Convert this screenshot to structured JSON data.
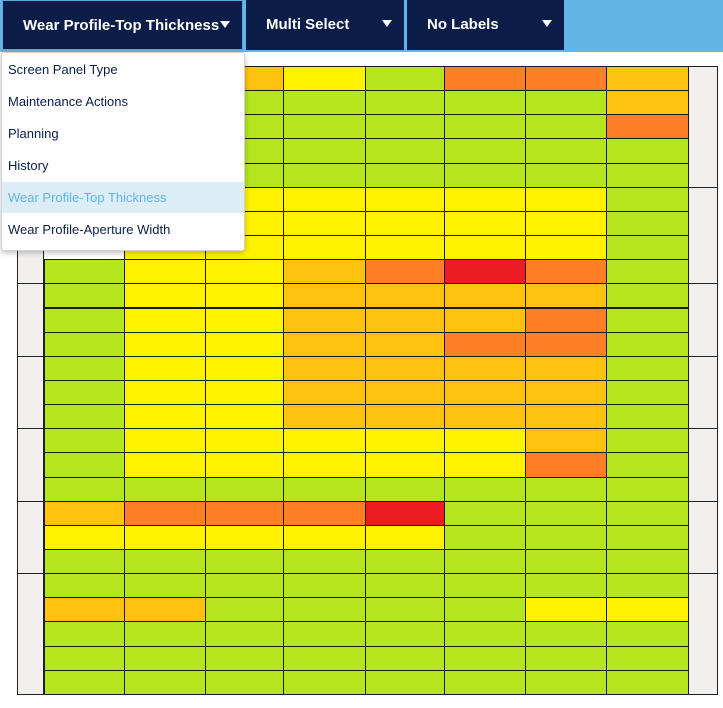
{
  "toolbar": {
    "profile_select": "Wear Profile-Top Thickness",
    "multi_select": "Multi Select",
    "labels_select": "No Labels"
  },
  "dropdown": {
    "selected_index": 4,
    "items": [
      "Screen Panel Type",
      "Maintenance Actions",
      "Planning",
      "History",
      "Wear Profile-Top Thickness",
      "Wear Profile-Aperture Width"
    ]
  },
  "colors": {
    "G": "#b5e61d",
    "Y": "#fff200",
    "A": "#ffc20e",
    "O": "#ff7f27",
    "R": "#ed1c24",
    "panel_bg": "#f2f0ee",
    "toolbar_dark": "#0b1d48",
    "toolbar_light": "#62b5e5"
  },
  "heatmap": {
    "rows": [
      "YAYGOOA",
      "GGGGGGA",
      "GGGGGGO",
      "GGGGGGG",
      "GGGGGGG",
      "YYYYYYG",
      "YYYYYYG",
      "YYYYYYG",
      "GYYAOROG",
      "GYYAAAAG",
      "GYYAAAOG",
      "GYYAAOOG",
      "GYYAAAAG",
      "GYYAAAAG",
      "GYYAAAAG",
      "GYYYYYAG",
      "GYYYYYOG",
      "GGGGGGGG",
      "AOOORGGG",
      "YYYYYGGG",
      "GGGGGGGG",
      "GGGGGGGG",
      "AAGGGGYY",
      "GGGGGGGG",
      "GGGGGGGG",
      "GGGGGGGG"
    ]
  }
}
